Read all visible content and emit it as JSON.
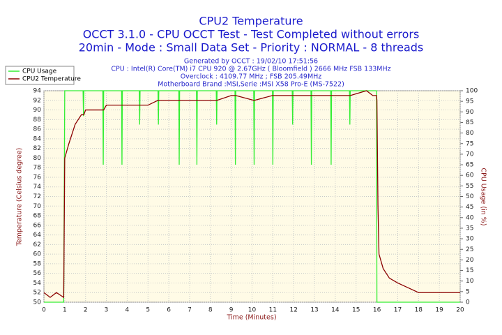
{
  "chart_data": {
    "type": "line",
    "title": "CPU2 Temperature",
    "subtitle": "OCCT 3.1.0 - CPU OCCT Test - Test Completed without errors",
    "subtitle2": "20min - Mode : Small Data Set - Priority : NORMAL - 8 threads",
    "info": [
      "Generated by OCCT : 19/02/10 17:51:56",
      "CPU : Intel(R) Core(TM) i7 CPU 920 @ 2.67GHz ( Bloomfield ) 2666 MHz FSB 133MHz",
      "Overclock : 4109.77 MHz ; FSB 205.49MHz",
      "Motherboard Brand :MSI,Serie :MSI X58 Pro-E (MS-7522)"
    ],
    "x_label": "Time (Minutes)",
    "y_label": "Temperature (Celsius degree)",
    "y2_label": "CPU Usage (in %)",
    "x": [
      0,
      0.3,
      0.6,
      0.95,
      1.0,
      1.2,
      1.5,
      1.8,
      1.88,
      1.9,
      1.92,
      2.0,
      2.5,
      2.83,
      2.85,
      2.87,
      3.0,
      3.73,
      3.75,
      3.77,
      4.0,
      4.58,
      4.6,
      4.62,
      5.0,
      5.48,
      5.5,
      5.52,
      6.0,
      6.48,
      6.5,
      6.52,
      7.0,
      7.33,
      7.35,
      7.37,
      8.0,
      8.28,
      8.3,
      8.32,
      9.0,
      9.18,
      9.2,
      9.22,
      10.08,
      10.1,
      10.12,
      10.98,
      11.0,
      11.02,
      11.93,
      11.95,
      11.97,
      12.83,
      12.85,
      12.87,
      13.78,
      13.8,
      13.82,
      14.68,
      14.7,
      14.72,
      15.5,
      15.8,
      15.98,
      16.0,
      16.05,
      16.1,
      16.3,
      16.6,
      17.0,
      17.5,
      18.0,
      18.5,
      20.0
    ],
    "series": [
      {
        "name": "CPU Usage",
        "color": "#33ee33",
        "axis": "y2",
        "values": [
          0,
          0,
          0,
          0,
          100,
          100,
          100,
          100,
          100,
          88,
          100,
          100,
          100,
          100,
          65,
          100,
          100,
          100,
          65,
          100,
          100,
          100,
          84,
          100,
          100,
          100,
          84,
          100,
          100,
          100,
          65,
          100,
          100,
          100,
          65,
          100,
          100,
          100,
          84,
          100,
          100,
          100,
          65,
          100,
          100,
          65,
          100,
          100,
          65,
          100,
          100,
          84,
          100,
          100,
          65,
          100,
          100,
          65,
          100,
          100,
          84,
          100,
          100,
          100,
          100,
          0,
          0,
          0,
          0,
          0,
          0,
          0,
          0,
          0,
          0
        ]
      },
      {
        "name": "CPU2 Temperature",
        "color": "#8b0000",
        "axis": "y",
        "values": [
          52,
          51,
          52,
          51,
          80,
          83,
          87,
          89,
          89,
          89,
          89,
          90,
          90,
          90,
          90,
          90,
          91,
          91,
          91,
          91,
          91,
          91,
          91,
          91,
          91,
          92,
          92,
          92,
          92,
          92,
          92,
          92,
          92,
          92,
          92,
          92,
          92,
          92,
          92,
          92,
          93,
          93,
          93,
          93,
          92,
          92,
          92,
          93,
          93,
          93,
          93,
          93,
          93,
          93,
          93,
          93,
          93,
          93,
          93,
          93,
          93,
          93,
          94,
          93,
          93,
          92,
          70,
          60,
          57,
          55,
          54,
          53,
          52,
          52,
          52
        ]
      }
    ],
    "xlim": [
      0,
      20
    ],
    "xticks": [
      0,
      1,
      2,
      3,
      4,
      5,
      6,
      7,
      8,
      9,
      10,
      11,
      12,
      13,
      14,
      15,
      16,
      17,
      18,
      19,
      20
    ],
    "ylim": [
      50,
      94
    ],
    "yticks": [
      50,
      52,
      54,
      56,
      58,
      60,
      62,
      64,
      66,
      68,
      70,
      72,
      74,
      76,
      78,
      80,
      82,
      84,
      86,
      88,
      90,
      92,
      94
    ],
    "y2lim": [
      0,
      100
    ],
    "y2ticks": [
      0,
      5,
      10,
      15,
      20,
      25,
      30,
      35,
      40,
      45,
      50,
      55,
      60,
      65,
      70,
      75,
      80,
      85,
      90,
      95,
      100
    ],
    "grid": true,
    "legend": "top-left"
  }
}
